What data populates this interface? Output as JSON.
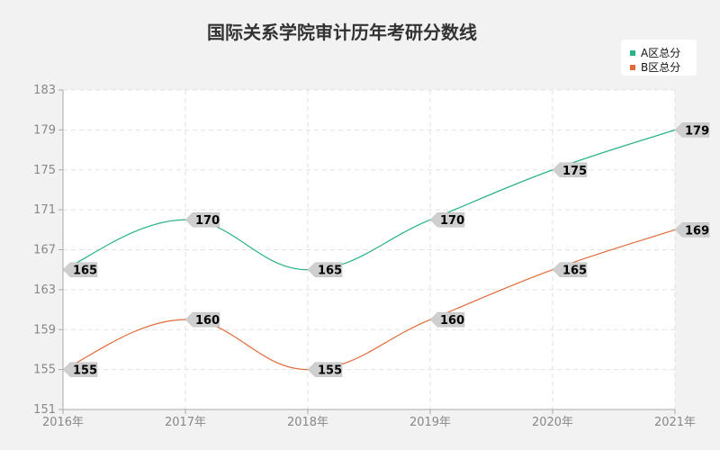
{
  "chart_data": {
    "type": "line",
    "title": "国际关系学院审计历年考研分数线",
    "x": [
      "2016年",
      "2017年",
      "2018年",
      "2019年",
      "2020年",
      "2021年"
    ],
    "ylim": [
      151,
      183
    ],
    "yticks": [
      151,
      155,
      159,
      163,
      167,
      171,
      175,
      179,
      183
    ],
    "grid": true,
    "legend_position": "top-right",
    "series": [
      {
        "name": "A区总分",
        "color": "#2bb28a",
        "values": [
          165,
          170,
          165,
          170,
          175,
          179
        ]
      },
      {
        "name": "B区总分",
        "color": "#e06a3b",
        "values": [
          155,
          160,
          155,
          160,
          165,
          169
        ]
      }
    ]
  }
}
